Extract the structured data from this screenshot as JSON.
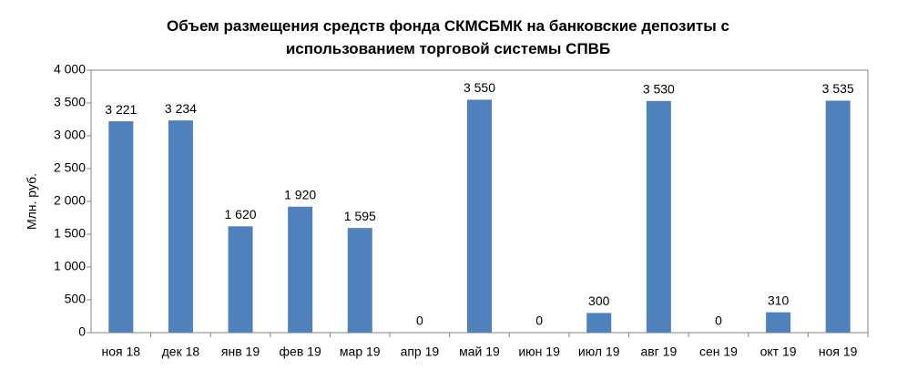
{
  "chart_data": {
    "type": "bar",
    "title": "Объем размещения средств фонда СКМСБМК на банковские депозиты с использованием торговой системы СПВБ",
    "ylabel": "Млн. руб.",
    "categories": [
      "ноя 18",
      "дек 18",
      "янв 19",
      "фев 19",
      "мар 19",
      "апр 19",
      "май 19",
      "июн 19",
      "июл 19",
      "авг 19",
      "сен 19",
      "окт 19",
      "ноя 19"
    ],
    "values": [
      3221,
      3234,
      1620,
      1920,
      1595,
      0,
      3550,
      0,
      300,
      3530,
      0,
      310,
      3535
    ],
    "value_labels": [
      "3 221",
      "3 234",
      "1 620",
      "1 920",
      "1 595",
      "0",
      "3 550",
      "0",
      "300",
      "3 530",
      "0",
      "310",
      "3 535"
    ],
    "color": "#4f81bd",
    "ylim": [
      0,
      4000
    ],
    "yticks": [
      0,
      500,
      {
        "value": 1000,
        "label": "1 000"
      },
      {
        "value": 1500,
        "label": "1 500"
      },
      {
        "value": 2000,
        "label": "2 000"
      },
      {
        "value": 2500,
        "label": "2 500"
      },
      {
        "value": 3000,
        "label": "3 000"
      },
      {
        "value": 3500,
        "label": "3 500"
      },
      {
        "value": 4000,
        "label": "4 000"
      }
    ]
  }
}
